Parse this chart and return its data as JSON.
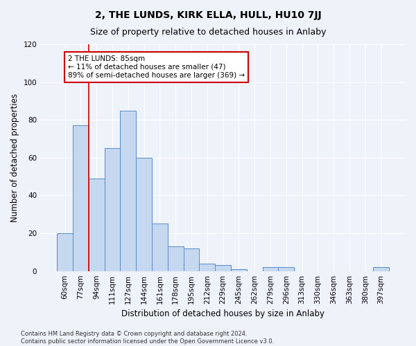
{
  "title": "2, THE LUNDS, KIRK ELLA, HULL, HU10 7JJ",
  "subtitle": "Size of property relative to detached houses in Anlaby",
  "xlabel": "Distribution of detached houses by size in Anlaby",
  "ylabel": "Number of detached properties",
  "categories": [
    "60sqm",
    "77sqm",
    "94sqm",
    "111sqm",
    "127sqm",
    "144sqm",
    "161sqm",
    "178sqm",
    "195sqm",
    "212sqm",
    "229sqm",
    "245sqm",
    "262sqm",
    "279sqm",
    "296sqm",
    "313sqm",
    "330sqm",
    "346sqm",
    "363sqm",
    "380sqm",
    "397sqm"
  ],
  "values": [
    20,
    77,
    49,
    65,
    85,
    60,
    25,
    13,
    12,
    4,
    3,
    1,
    0,
    2,
    2,
    0,
    0,
    0,
    0,
    0,
    2
  ],
  "bar_color": "#c5d8f0",
  "bar_edge_color": "#5b8ac9",
  "red_line_bar_index": 1.5,
  "annotation_line_color": "#cc0000",
  "annotation_text_line1": "2 THE LUNDS: 85sqm",
  "annotation_text_line2": "← 11% of detached houses are smaller (47)",
  "annotation_text_line3": "89% of semi-detached houses are larger (369) →",
  "ylim": [
    0,
    120
  ],
  "yticks": [
    0,
    20,
    40,
    60,
    80,
    100,
    120
  ],
  "footer": "Contains HM Land Registry data © Crown copyright and database right 2024.\nContains public sector information licensed under the Open Government Licence v3.0.",
  "bg_color": "#eef2f9",
  "grid_color": "#ffffff",
  "title_fontsize": 10,
  "subtitle_fontsize": 9,
  "label_fontsize": 8.5,
  "tick_fontsize": 7.5,
  "annotation_fontsize": 7.5,
  "footer_fontsize": 6
}
